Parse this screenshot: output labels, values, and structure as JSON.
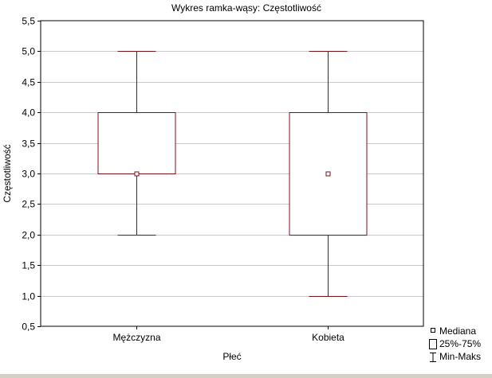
{
  "chart_data": {
    "type": "box",
    "title": "Wykres ramka-wąsy:  Częstotliwość",
    "xlabel": "Płeć",
    "ylabel": "Częstotliwość",
    "ylim": [
      0.5,
      5.5
    ],
    "yticks": [
      0.5,
      1.0,
      1.5,
      2.0,
      2.5,
      3.0,
      3.5,
      4.0,
      4.5,
      5.0,
      5.5
    ],
    "ytick_labels": [
      "0,5",
      "1,0",
      "1,5",
      "2,0",
      "2,5",
      "3,0",
      "3,5",
      "4,0",
      "4,5",
      "5,0",
      "5,5"
    ],
    "grid": true,
    "legend_position": "bottom-right",
    "legend": {
      "median": "Mediana",
      "box": "25%-75%",
      "whisker": "Min-Maks"
    },
    "categories": [
      "Mężczyzna",
      "Kobieta"
    ],
    "boxes": [
      {
        "category": "Mężczyzna",
        "min": 2.0,
        "q1": 3.0,
        "median": 3.0,
        "q3": 4.0,
        "max": 5.0
      },
      {
        "category": "Kobieta",
        "min": 1.0,
        "q1": 2.0,
        "median": 3.0,
        "q3": 4.0,
        "max": 5.0
      }
    ],
    "colors": {
      "box_stroke": "#7b0f17",
      "grid": "#c8c8c8",
      "frame": "#000000",
      "background": "#ffffff"
    }
  }
}
